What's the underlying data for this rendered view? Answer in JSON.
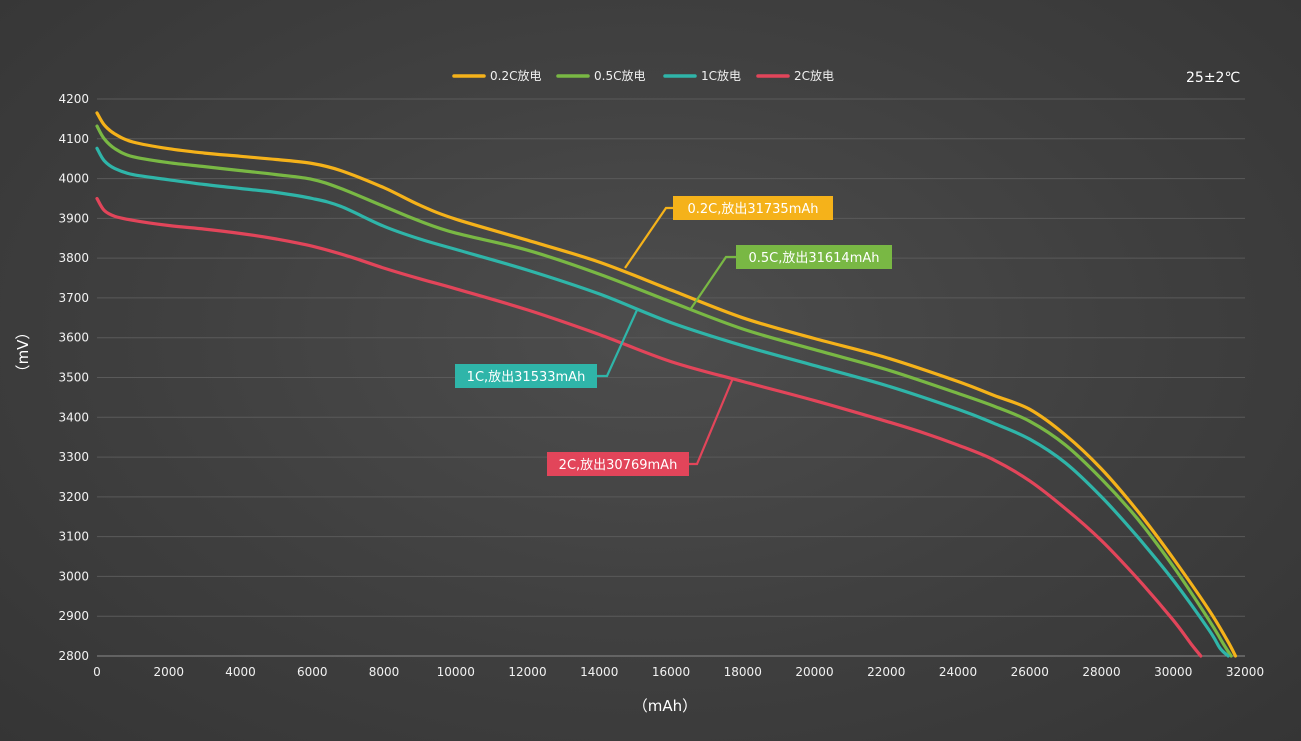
{
  "chart_data": {
    "type": "line",
    "xlabel": "（mAh）",
    "ylabel": "（mV）",
    "temperature_note": "25±2℃",
    "xlim": [
      0,
      32000
    ],
    "ylim": [
      2800,
      4200
    ],
    "x_ticks": [
      "0",
      "2000",
      "4000",
      "6000",
      "8000",
      "10000",
      "12000",
      "14000",
      "16000",
      "18000",
      "20000",
      "22000",
      "24000",
      "26000",
      "28000",
      "30000",
      "32000"
    ],
    "y_ticks": [
      "4200",
      "4100",
      "4000",
      "3900",
      "3800",
      "3700",
      "3600",
      "3500",
      "3400",
      "3300",
      "3200",
      "3100",
      "3000",
      "2900",
      "2800"
    ],
    "grid": true,
    "legend_position": "top-center",
    "series": [
      {
        "name": "0.2C放电",
        "color": "#f5b21a",
        "annotation": "0.2C,放出31735mAh",
        "x": [
          0,
          200,
          500,
          1000,
          2000,
          3000,
          4000,
          5000,
          6000,
          6800,
          8000,
          9000,
          10000,
          12000,
          14000,
          16000,
          18000,
          20000,
          22000,
          24000,
          25000,
          26000,
          27000,
          28000,
          29000,
          30000,
          31000,
          31500,
          31735
        ],
        "y": [
          4165,
          4135,
          4112,
          4092,
          4075,
          4064,
          4056,
          4048,
          4038,
          4020,
          3977,
          3933,
          3898,
          3845,
          3790,
          3720,
          3650,
          3598,
          3550,
          3490,
          3455,
          3420,
          3355,
          3270,
          3165,
          3045,
          2915,
          2840,
          2800
        ]
      },
      {
        "name": "0.5C放电",
        "color": "#79b844",
        "annotation": "0.5C,放出31614mAh",
        "x": [
          0,
          200,
          500,
          1000,
          2000,
          3000,
          4000,
          5000,
          6000,
          6800,
          8000,
          9000,
          10000,
          12000,
          14000,
          16000,
          18000,
          20000,
          22000,
          24000,
          25000,
          26000,
          27000,
          28000,
          29000,
          30000,
          31000,
          31400,
          31614
        ],
        "y": [
          4132,
          4100,
          4075,
          4055,
          4040,
          4030,
          4020,
          4010,
          3998,
          3975,
          3930,
          3893,
          3863,
          3820,
          3760,
          3690,
          3622,
          3570,
          3520,
          3460,
          3428,
          3390,
          3330,
          3245,
          3145,
          3025,
          2890,
          2830,
          2800
        ]
      },
      {
        "name": "1C放电",
        "color": "#2fb5a9",
        "annotation": "1C,放出31533mAh",
        "x": [
          0,
          200,
          500,
          1000,
          2000,
          3000,
          4000,
          5000,
          6000,
          6800,
          8000,
          9000,
          10000,
          12000,
          14000,
          16000,
          18000,
          20000,
          22000,
          24000,
          25000,
          26000,
          27000,
          28000,
          29000,
          30000,
          31000,
          31300,
          31533
        ],
        "y": [
          4076,
          4045,
          4025,
          4010,
          3997,
          3985,
          3975,
          3965,
          3950,
          3930,
          3880,
          3848,
          3822,
          3770,
          3710,
          3638,
          3580,
          3530,
          3480,
          3420,
          3385,
          3345,
          3285,
          3200,
          3100,
          2990,
          2865,
          2820,
          2800
        ]
      },
      {
        "name": "2C放电",
        "color": "#e2455a",
        "annotation": "2C,放出30769mAh",
        "x": [
          0,
          200,
          500,
          1000,
          2000,
          3000,
          4000,
          5000,
          6000,
          7000,
          8000,
          9000,
          10000,
          12000,
          14000,
          16000,
          18000,
          20000,
          22000,
          23000,
          24000,
          25000,
          26000,
          27000,
          28000,
          29000,
          30000,
          30500,
          30769
        ],
        "y": [
          3950,
          3920,
          3905,
          3895,
          3882,
          3873,
          3862,
          3848,
          3830,
          3805,
          3775,
          3748,
          3723,
          3670,
          3608,
          3540,
          3490,
          3442,
          3390,
          3362,
          3330,
          3293,
          3240,
          3170,
          3090,
          2995,
          2890,
          2830,
          2800
        ]
      }
    ]
  }
}
